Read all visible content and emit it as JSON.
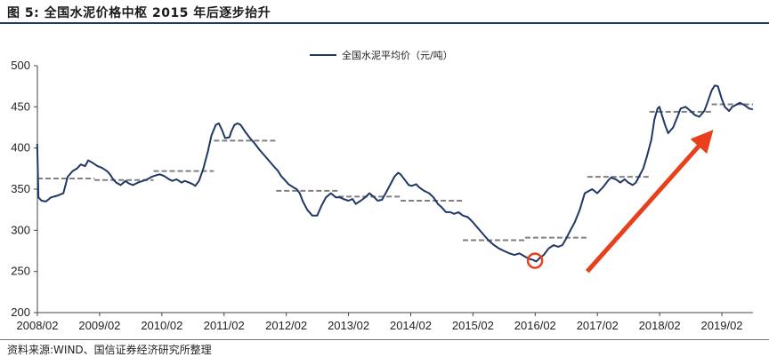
{
  "figure": {
    "title": "图 5:  全国水泥价格中枢 2015 年后逐步抬升",
    "source": "资料来源:WIND、国信证券经济研究所整理"
  },
  "chart_data": {
    "type": "line",
    "xlabel": "",
    "ylabel": "",
    "ylim": [
      200,
      500
    ],
    "yticks": [
      200,
      250,
      300,
      350,
      400,
      450,
      500
    ],
    "x_tick_labels": [
      "2008/02",
      "2009/02",
      "2010/02",
      "2011/02",
      "2012/02",
      "2013/02",
      "2014/02",
      "2015/02",
      "2016/02",
      "2017/02",
      "2018/02",
      "2019/02"
    ],
    "x_range": [
      2008.083,
      2019.583
    ],
    "grid": false,
    "legend_position": "top-center",
    "series": [
      {
        "name": "全国水泥平均价（元/吨）",
        "color": "#1f3864",
        "points": [
          [
            2008.08,
            405
          ],
          [
            2008.1,
            340
          ],
          [
            2008.15,
            336
          ],
          [
            2008.22,
            335
          ],
          [
            2008.3,
            340
          ],
          [
            2008.4,
            342
          ],
          [
            2008.5,
            345
          ],
          [
            2008.57,
            365
          ],
          [
            2008.65,
            372
          ],
          [
            2008.72,
            375
          ],
          [
            2008.78,
            380
          ],
          [
            2008.85,
            378
          ],
          [
            2008.9,
            385
          ],
          [
            2008.97,
            382
          ],
          [
            2009.05,
            378
          ],
          [
            2009.12,
            376
          ],
          [
            2009.2,
            372
          ],
          [
            2009.25,
            368
          ],
          [
            2009.3,
            362
          ],
          [
            2009.35,
            358
          ],
          [
            2009.42,
            355
          ],
          [
            2009.5,
            360
          ],
          [
            2009.55,
            357
          ],
          [
            2009.62,
            355
          ],
          [
            2009.7,
            358
          ],
          [
            2009.78,
            360
          ],
          [
            2009.85,
            362
          ],
          [
            2009.92,
            365
          ],
          [
            2010.0,
            367
          ],
          [
            2010.05,
            368
          ],
          [
            2010.12,
            366
          ],
          [
            2010.2,
            362
          ],
          [
            2010.25,
            360
          ],
          [
            2010.32,
            362
          ],
          [
            2010.4,
            358
          ],
          [
            2010.45,
            360
          ],
          [
            2010.52,
            358
          ],
          [
            2010.58,
            356
          ],
          [
            2010.62,
            354
          ],
          [
            2010.68,
            360
          ],
          [
            2010.75,
            375
          ],
          [
            2010.82,
            395
          ],
          [
            2010.88,
            415
          ],
          [
            2010.95,
            428
          ],
          [
            2011.0,
            430
          ],
          [
            2011.05,
            422
          ],
          [
            2011.1,
            412
          ],
          [
            2011.17,
            413
          ],
          [
            2011.2,
            420
          ],
          [
            2011.25,
            428
          ],
          [
            2011.3,
            430
          ],
          [
            2011.35,
            428
          ],
          [
            2011.42,
            420
          ],
          [
            2011.5,
            412
          ],
          [
            2011.58,
            405
          ],
          [
            2011.65,
            398
          ],
          [
            2011.72,
            392
          ],
          [
            2011.8,
            385
          ],
          [
            2011.88,
            378
          ],
          [
            2011.95,
            372
          ],
          [
            2012.0,
            366
          ],
          [
            2012.05,
            362
          ],
          [
            2012.12,
            356
          ],
          [
            2012.2,
            352
          ],
          [
            2012.25,
            350
          ],
          [
            2012.3,
            345
          ],
          [
            2012.35,
            335
          ],
          [
            2012.42,
            325
          ],
          [
            2012.5,
            318
          ],
          [
            2012.58,
            318
          ],
          [
            2012.65,
            330
          ],
          [
            2012.72,
            340
          ],
          [
            2012.8,
            345
          ],
          [
            2012.88,
            340
          ],
          [
            2012.95,
            340
          ],
          [
            2013.0,
            338
          ],
          [
            2013.08,
            336
          ],
          [
            2013.15,
            338
          ],
          [
            2013.2,
            332
          ],
          [
            2013.28,
            336
          ],
          [
            2013.35,
            340
          ],
          [
            2013.42,
            345
          ],
          [
            2013.5,
            340
          ],
          [
            2013.55,
            336
          ],
          [
            2013.62,
            337
          ],
          [
            2013.68,
            345
          ],
          [
            2013.75,
            355
          ],
          [
            2013.82,
            365
          ],
          [
            2013.88,
            370
          ],
          [
            2013.92,
            368
          ],
          [
            2014.0,
            360
          ],
          [
            2014.05,
            355
          ],
          [
            2014.1,
            354
          ],
          [
            2014.17,
            356
          ],
          [
            2014.22,
            352
          ],
          [
            2014.3,
            348
          ],
          [
            2014.38,
            345
          ],
          [
            2014.45,
            340
          ],
          [
            2014.52,
            332
          ],
          [
            2014.58,
            328
          ],
          [
            2014.65,
            322
          ],
          [
            2014.72,
            322
          ],
          [
            2014.78,
            320
          ],
          [
            2014.85,
            322
          ],
          [
            2014.92,
            318
          ],
          [
            2015.0,
            316
          ],
          [
            2015.08,
            310
          ],
          [
            2015.17,
            302
          ],
          [
            2015.25,
            295
          ],
          [
            2015.33,
            288
          ],
          [
            2015.42,
            282
          ],
          [
            2015.5,
            278
          ],
          [
            2015.58,
            275
          ],
          [
            2015.67,
            272
          ],
          [
            2015.75,
            270
          ],
          [
            2015.83,
            272
          ],
          [
            2015.92,
            268
          ],
          [
            2016.0,
            265
          ],
          [
            2016.05,
            264
          ],
          [
            2016.1,
            262
          ],
          [
            2016.15,
            266
          ],
          [
            2016.22,
            270
          ],
          [
            2016.3,
            278
          ],
          [
            2016.38,
            282
          ],
          [
            2016.45,
            280
          ],
          [
            2016.52,
            282
          ],
          [
            2016.58,
            290
          ],
          [
            2016.65,
            300
          ],
          [
            2016.72,
            310
          ],
          [
            2016.8,
            325
          ],
          [
            2016.88,
            345
          ],
          [
            2016.95,
            348
          ],
          [
            2017.0,
            350
          ],
          [
            2017.08,
            345
          ],
          [
            2017.17,
            352
          ],
          [
            2017.25,
            360
          ],
          [
            2017.3,
            364
          ],
          [
            2017.38,
            362
          ],
          [
            2017.45,
            358
          ],
          [
            2017.52,
            362
          ],
          [
            2017.58,
            358
          ],
          [
            2017.65,
            355
          ],
          [
            2017.7,
            358
          ],
          [
            2017.75,
            365
          ],
          [
            2017.82,
            375
          ],
          [
            2017.88,
            390
          ],
          [
            2017.95,
            410
          ],
          [
            2018.0,
            435
          ],
          [
            2018.05,
            448
          ],
          [
            2018.08,
            450
          ],
          [
            2018.12,
            440
          ],
          [
            2018.17,
            428
          ],
          [
            2018.22,
            418
          ],
          [
            2018.3,
            425
          ],
          [
            2018.38,
            440
          ],
          [
            2018.42,
            448
          ],
          [
            2018.5,
            450
          ],
          [
            2018.58,
            445
          ],
          [
            2018.65,
            440
          ],
          [
            2018.72,
            438
          ],
          [
            2018.8,
            445
          ],
          [
            2018.85,
            455
          ],
          [
            2018.92,
            470
          ],
          [
            2018.97,
            476
          ],
          [
            2019.02,
            475
          ],
          [
            2019.08,
            460
          ],
          [
            2019.13,
            450
          ],
          [
            2019.2,
            445
          ],
          [
            2019.25,
            450
          ],
          [
            2019.3,
            452
          ],
          [
            2019.37,
            455
          ],
          [
            2019.45,
            452
          ],
          [
            2019.52,
            448
          ],
          [
            2019.58,
            447
          ]
        ]
      }
    ],
    "average_levels": [
      {
        "from": 2008.083,
        "to": 2009.0,
        "value": 363
      },
      {
        "from": 2009.0,
        "to": 2009.95,
        "value": 361
      },
      {
        "from": 2009.95,
        "to": 2010.92,
        "value": 372
      },
      {
        "from": 2010.92,
        "to": 2011.92,
        "value": 409
      },
      {
        "from": 2011.92,
        "to": 2012.92,
        "value": 348
      },
      {
        "from": 2012.92,
        "to": 2013.92,
        "value": 341
      },
      {
        "from": 2013.92,
        "to": 2014.92,
        "value": 336
      },
      {
        "from": 2014.92,
        "to": 2015.92,
        "value": 288
      },
      {
        "from": 2015.92,
        "to": 2016.92,
        "value": 291
      },
      {
        "from": 2016.92,
        "to": 2017.92,
        "value": 365
      },
      {
        "from": 2017.92,
        "to": 2018.92,
        "value": 444
      },
      {
        "from": 2018.92,
        "to": 2019.583,
        "value": 453
      }
    ],
    "average_line_color": "#808080",
    "annotations": [
      {
        "type": "circle",
        "x": 2016.08,
        "y": 263,
        "color": "#e8401c"
      },
      {
        "type": "arrow",
        "from": [
          2016.92,
          250
        ],
        "to": [
          2018.78,
          408
        ],
        "color": "#e8401c"
      }
    ]
  }
}
